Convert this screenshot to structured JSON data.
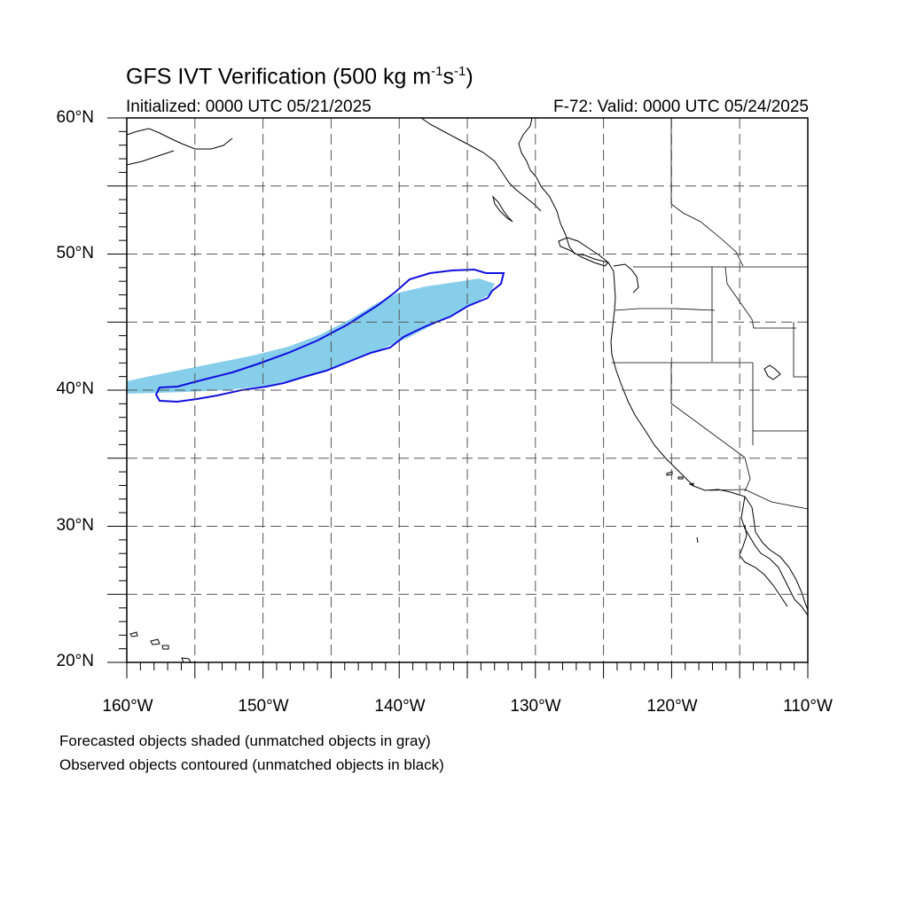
{
  "header": {
    "title_main": "GFS IVT Verification (500 kg m",
    "title_exp1": "-1",
    "title_mid": "s",
    "title_exp2": "-1",
    "title_end": ")",
    "initialized": "Initialized: 0000 UTC 05/21/2025",
    "valid": "F-72: Valid: 0000 UTC 05/24/2025"
  },
  "notes": {
    "forecast": "Forecasted objects shaded (unmatched objects in gray)",
    "observed": "Observed objects contoured (unmatched objects in black)"
  },
  "colors": {
    "forecast_fill": "#87ceeb",
    "observed_contour": "#1010e0",
    "coastline": "#000000",
    "gridline": "#555555"
  },
  "map": {
    "projection": "cylindrical-equidistant",
    "lon_range": [
      -160,
      -110
    ],
    "lat_range": [
      20,
      60
    ],
    "grid_major_lon": [
      -155,
      -150,
      -145,
      -140,
      -135,
      -130,
      -125,
      -120,
      -115
    ],
    "grid_major_lat": [
      25,
      30,
      35,
      40,
      45,
      50,
      55
    ],
    "lat_labels": [
      "20°N",
      "30°N",
      "40°N",
      "50°N",
      "60°N"
    ],
    "lat_label_values": [
      20,
      30,
      40,
      50,
      60
    ],
    "lon_labels": [
      "160°W",
      "150°W",
      "140°W",
      "130°W",
      "120°W",
      "110°W"
    ],
    "lon_label_values": [
      -160,
      -150,
      -140,
      -130,
      -120,
      -110
    ]
  }
}
